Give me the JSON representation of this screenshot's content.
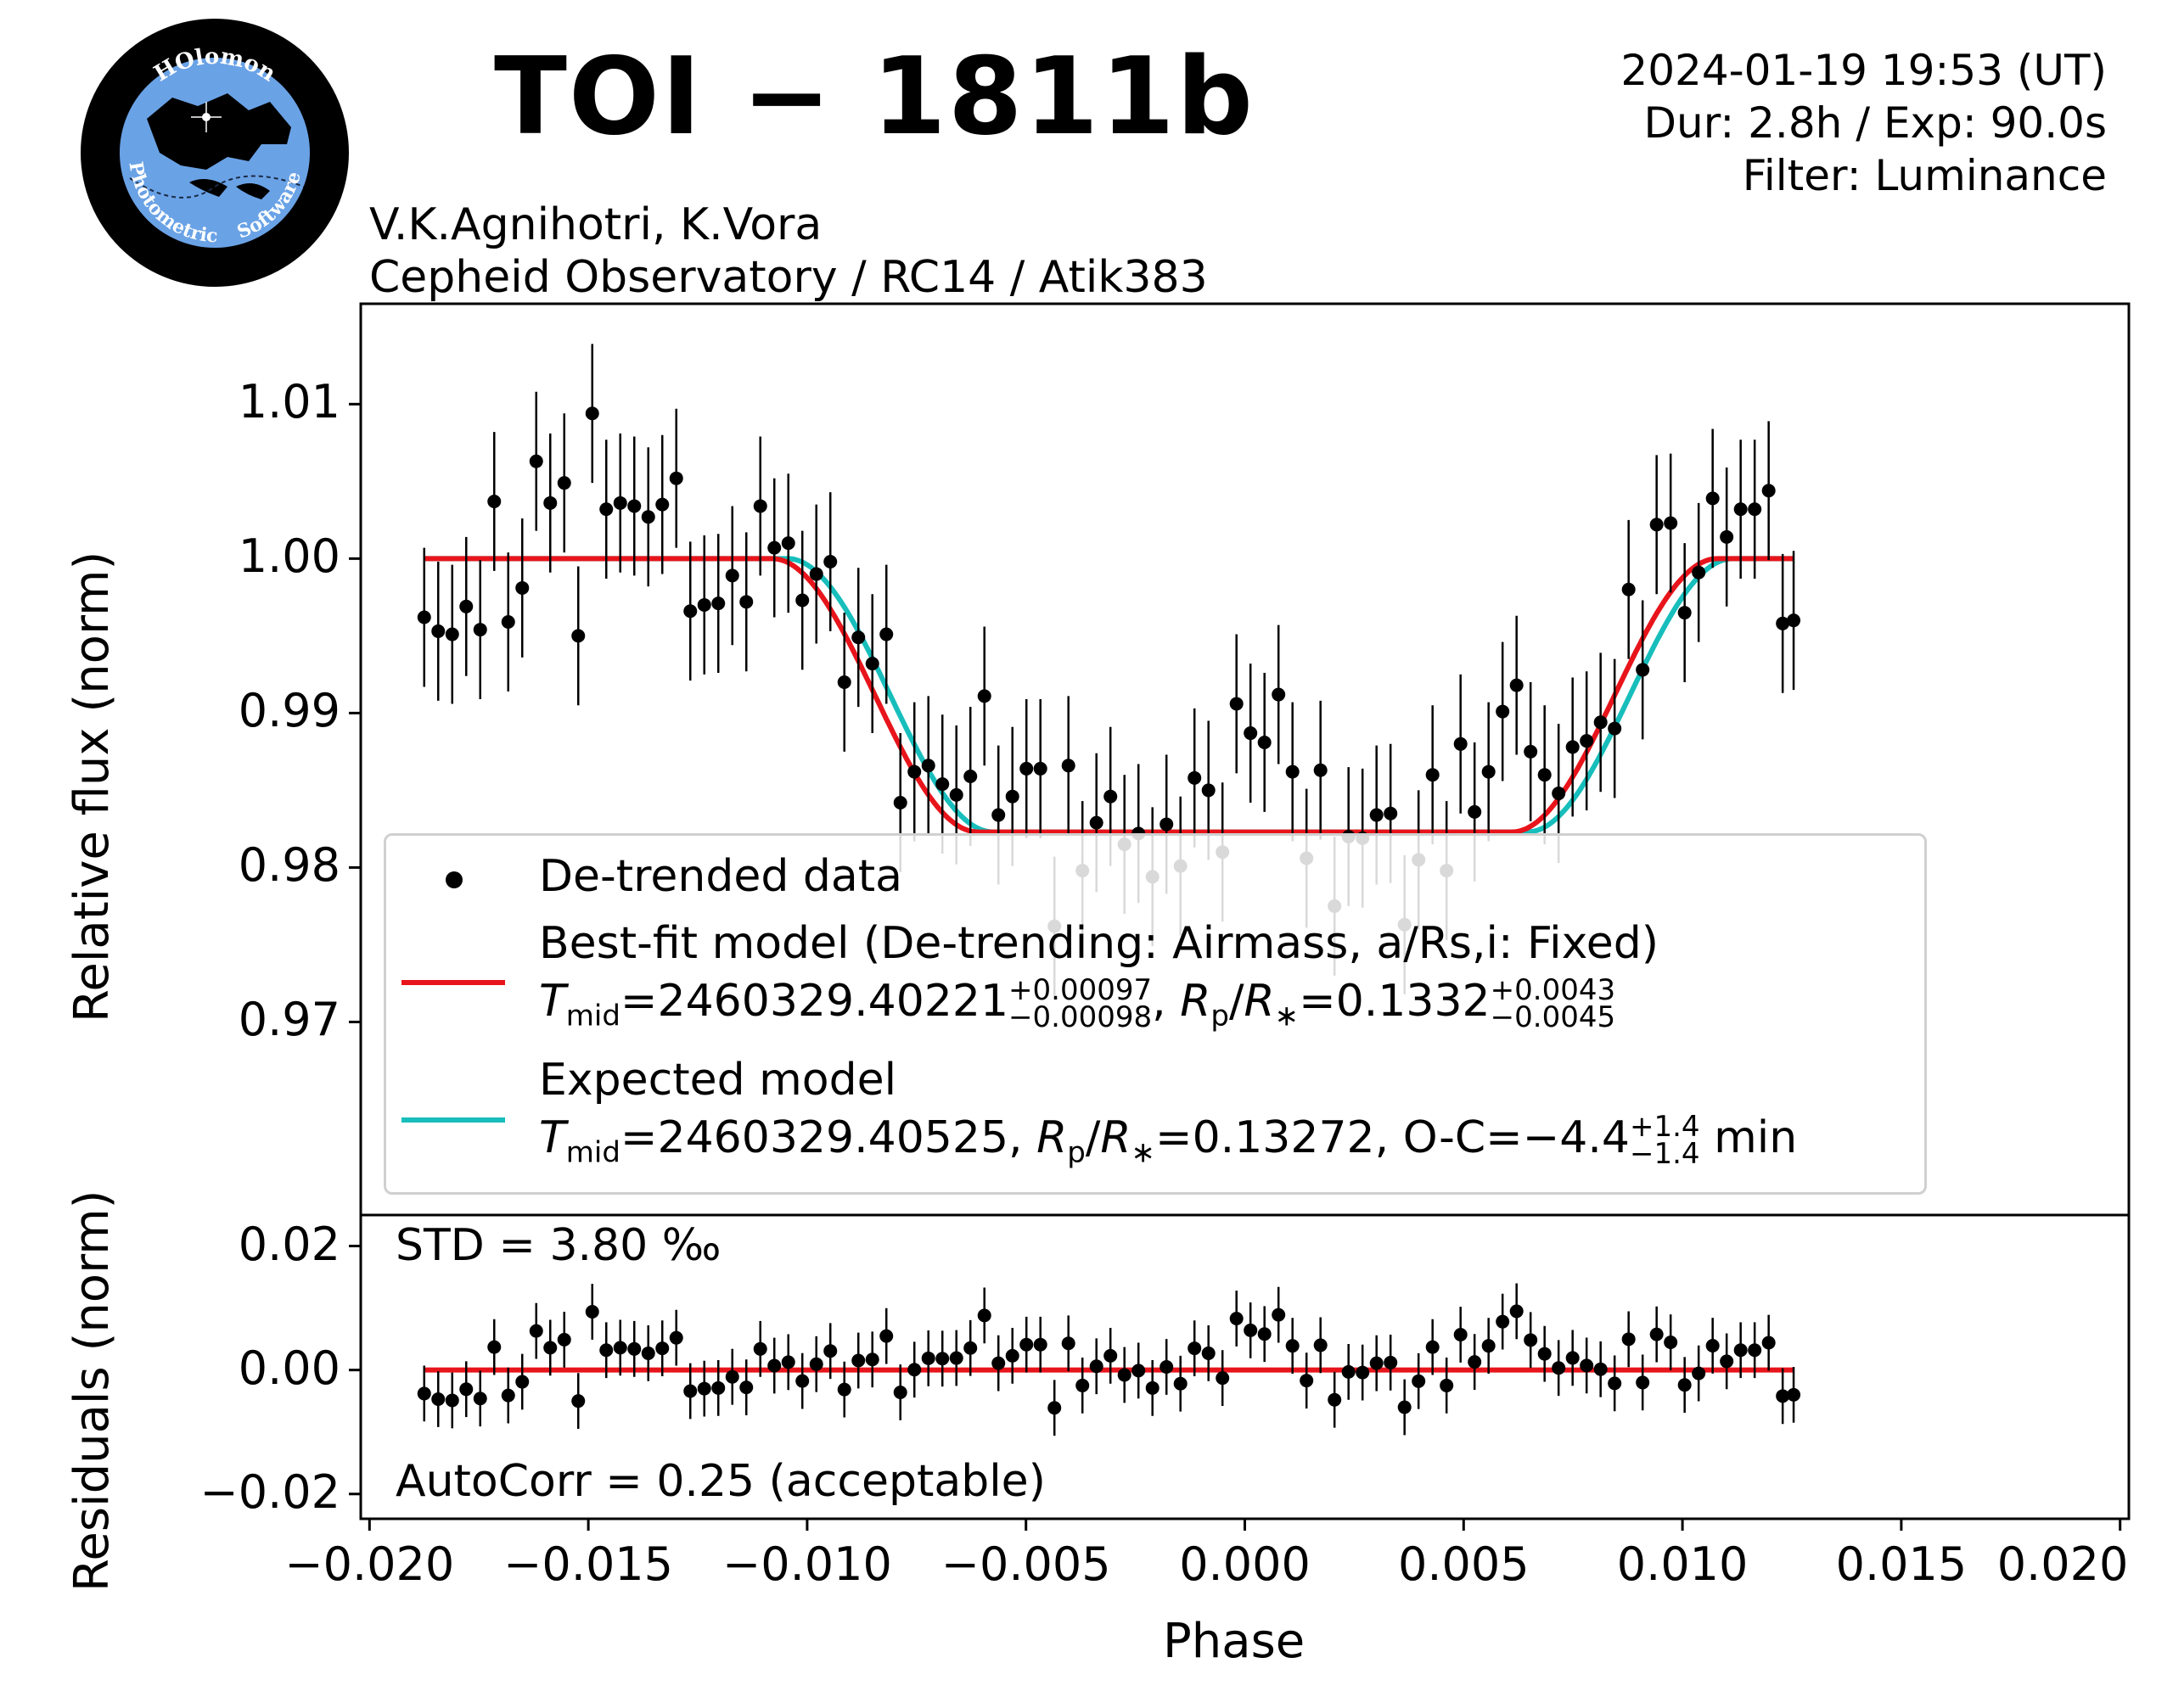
{
  "header": {
    "title": "TOI − 1811b",
    "datetime": "2024-01-19 19:53 (UT)",
    "duration": "Dur: 2.8h / Exp: 90.0s",
    "filter": "Filter: Luminance",
    "observers": "V.K.Agnihotri, K.Vora",
    "instrument": "Cepheid Observatory / RC14 / Atik383"
  },
  "logo": {
    "top_text": "HOlomon",
    "left_text": "Photometric",
    "right_text": "Software"
  },
  "colors": {
    "data": "#000000",
    "best_fit": "#e8141b",
    "expected": "#17bebb"
  },
  "chart_data": [
    {
      "type": "scatter",
      "panel": "light curve",
      "ylabel": "Relative flux (norm)",
      "xlabel": "",
      "ylim": [
        0.9575,
        1.0165
      ],
      "yticks": [
        0.97,
        0.98,
        0.99,
        1.0,
        1.01
      ],
      "ytick_labels": [
        "0.97",
        "0.98",
        "0.99",
        "1.00",
        "1.01"
      ],
      "grid": false,
      "legend_position": "lower-center",
      "legend": {
        "data": "De-trended data",
        "best_fit": "Best-fit model (De-trending: Airmass, a/Rs,i: Fixed)",
        "best_fit_params": {
          "tmid": "2460329.40221",
          "tmid_up": "+0.00097",
          "tmid_dn": "−0.00098",
          "rp": "0.1332",
          "rp_up": "+0.0043",
          "rp_dn": "−0.0045"
        },
        "expected": "Expected model",
        "expected_params": {
          "tmid": "2460329.40525",
          "rp": "0.13272",
          "oc": "−4.4",
          "oc_up": "+1.4",
          "oc_dn": "−1.4",
          "oc_unit": "min"
        }
      },
      "series": [
        {
          "name": "De-trended data",
          "x": [
            -0.01875,
            -0.01843,
            -0.01811,
            -0.01779,
            -0.01747,
            -0.01715,
            -0.01683,
            -0.01651,
            -0.01619,
            -0.01587,
            -0.01555,
            -0.01523,
            -0.01491,
            -0.01459,
            -0.01427,
            -0.01395,
            -0.01363,
            -0.01331,
            -0.01299,
            -0.01267,
            -0.01235,
            -0.01203,
            -0.01171,
            -0.01139,
            -0.01107,
            -0.01075,
            -0.01043,
            -0.01011,
            -0.00979,
            -0.00947,
            -0.00915,
            -0.00883,
            -0.00851,
            -0.00819,
            -0.00787,
            -0.00755,
            -0.00723,
            -0.00691,
            -0.00659,
            -0.00627,
            -0.00595,
            -0.00563,
            -0.00531,
            -0.00499,
            -0.00467,
            -0.00435,
            -0.00403,
            -0.00371,
            -0.00339,
            -0.00307,
            -0.00275,
            -0.00243,
            -0.00211,
            -0.00179,
            -0.00147,
            -0.00115,
            -0.00083,
            -0.00051,
            -0.00019,
            0.00013,
            0.00045,
            0.00077,
            0.00109,
            0.00141,
            0.00173,
            0.00205,
            0.00237,
            0.00269,
            0.00301,
            0.00333,
            0.00365,
            0.00397,
            0.00429,
            0.00461,
            0.00493,
            0.00525,
            0.00557,
            0.00589,
            0.00621,
            0.00653,
            0.00685,
            0.00717,
            0.00749,
            0.00781,
            0.00813,
            0.00845,
            0.00877,
            0.00909,
            0.00941,
            0.00973,
            0.01005,
            0.01037,
            0.01069,
            0.01101,
            0.01133,
            0.01165,
            0.01197,
            0.01229,
            0.01254
          ],
          "y": [
            0.9962,
            0.9953,
            0.9951,
            0.9969,
            0.9954,
            1.0037,
            0.9959,
            0.9981,
            1.0063,
            1.0036,
            1.0049,
            0.995,
            1.0094,
            1.0032,
            1.0036,
            1.0034,
            1.0027,
            1.0035,
            1.0052,
            0.9966,
            0.997,
            0.9971,
            0.9989,
            0.9972,
            1.0034,
            1.0007,
            1.001,
            0.9973,
            0.999,
            0.9998,
            0.992,
            0.9949,
            0.9932,
            0.9951,
            0.9842,
            0.9862,
            0.9866,
            0.9854,
            0.9847,
            0.9859,
            0.9911,
            0.9834,
            0.9846,
            0.9864,
            0.9864,
            0.9762,
            0.9866,
            0.9798,
            0.9829,
            0.9846,
            0.9815,
            0.9822,
            0.9794,
            0.9828,
            0.9801,
            0.9858,
            0.985,
            0.981,
            0.9906,
            0.9887,
            0.9881,
            0.9912,
            0.9862,
            0.9806,
            0.9863,
            0.9775,
            0.982,
            0.9819,
            0.9834,
            0.9835,
            0.9763,
            0.9805,
            0.986,
            0.9798,
            0.988,
            0.9836,
            0.9862,
            0.9901,
            0.9918,
            0.9875,
            0.986,
            0.9848,
            0.9878,
            0.9882,
            0.9894,
            0.989,
            0.998,
            0.9928,
            1.0022,
            1.0023,
            0.9965,
            0.9991,
            1.0039,
            1.0014,
            1.0032,
            1.0032,
            1.0044,
            0.9958,
            0.996
          ],
          "yerr": 0.0045
        },
        {
          "name": "Best-fit model",
          "style": "line",
          "tmid": 0.0,
          "depth": 0.0177,
          "half_width": 0.0108,
          "ingress": 0.0047,
          "xrange": [
            -0.01875,
            0.01254
          ]
        },
        {
          "name": "Expected model",
          "style": "line",
          "tmid": 0.00035,
          "depth": 0.0177,
          "half_width": 0.0108,
          "ingress": 0.0047,
          "xrange": [
            -0.01875,
            0.01254
          ]
        }
      ]
    },
    {
      "type": "scatter",
      "panel": "residuals",
      "ylabel": "Residuals (norm)",
      "xlabel": "Phase",
      "xlim": [
        -0.0202,
        0.0202
      ],
      "ylim": [
        -0.024,
        0.025
      ],
      "xticks": [
        -0.02,
        -0.015,
        -0.01,
        -0.005,
        0.0,
        0.005,
        0.01,
        0.015,
        0.02
      ],
      "xtick_labels": [
        "−0.020",
        "−0.015",
        "−0.010",
        "−0.005",
        "0.000",
        "0.005",
        "0.010",
        "0.015",
        "0.020"
      ],
      "yticks": [
        -0.02,
        0.0,
        0.02
      ],
      "ytick_labels": [
        "−0.02",
        "0.00",
        "0.02"
      ],
      "std_text": "STD = 3.80 ‰",
      "autocorr_text": "AutoCorr = 0.25 (acceptable)",
      "zero_line": 0.0,
      "yerr": 0.0045
    }
  ]
}
